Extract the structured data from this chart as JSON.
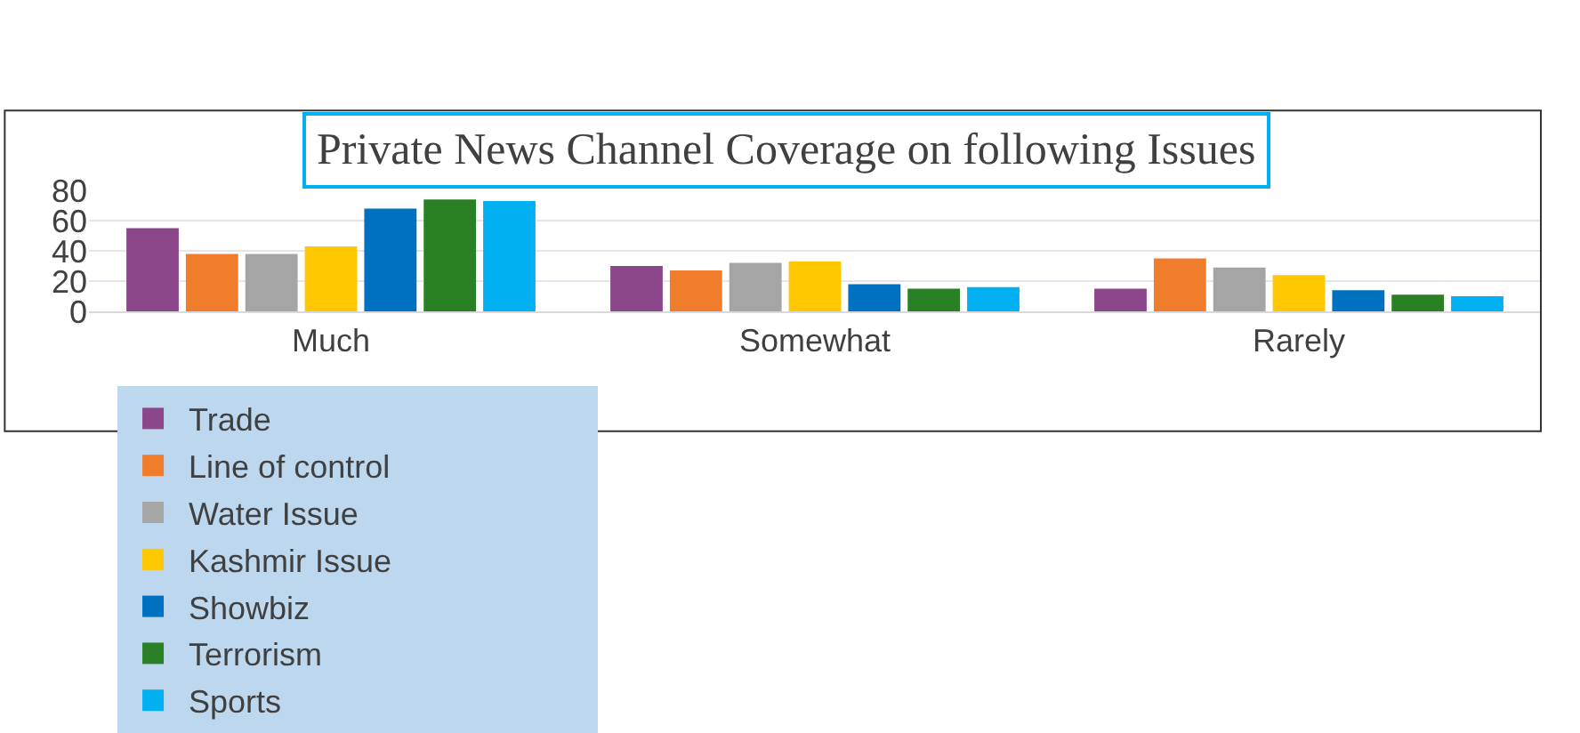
{
  "chart_data": {
    "type": "bar",
    "title": "Private News Channel Coverage on following Issues",
    "categories": [
      "Much",
      "Somewhat",
      "Rarely"
    ],
    "series": [
      {
        "name": "Trade",
        "color": "#8b4789",
        "values": [
          55,
          30,
          15
        ]
      },
      {
        "name": "Line of control",
        "color": "#f07d2c",
        "values": [
          38,
          27,
          35
        ]
      },
      {
        "name": "Water Issue",
        "color": "#a5a5a5",
        "values": [
          38,
          32,
          29
        ]
      },
      {
        "name": "Kashmir Issue",
        "color": "#ffc800",
        "values": [
          43,
          33,
          24
        ]
      },
      {
        "name": "Showbiz",
        "color": "#0070c0",
        "values": [
          68,
          18,
          14
        ]
      },
      {
        "name": "Terrorism",
        "color": "#2a8125",
        "values": [
          74,
          15,
          11
        ]
      },
      {
        "name": "Sports",
        "color": "#00b0f0",
        "values": [
          73,
          16,
          10
        ]
      }
    ],
    "ylim": [
      0,
      80
    ],
    "yticks": [
      0,
      20,
      40,
      60,
      80
    ],
    "grid": "y",
    "legend": "bottom"
  }
}
